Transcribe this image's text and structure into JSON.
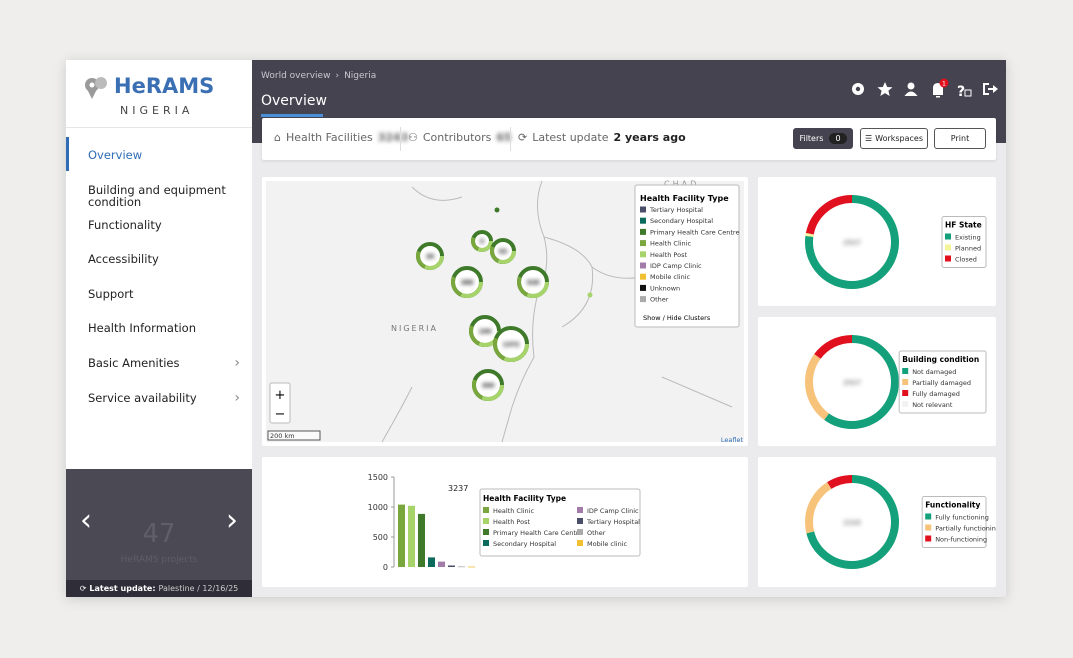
{
  "sidebar": {
    "brand": "HeRAMS",
    "country": "NIGERIA",
    "menu": [
      "Overview",
      "Building and equipment condition",
      "Functionality",
      "Accessibility",
      "Support",
      "Health Information",
      "Basic Amenities",
      "Service availability"
    ],
    "projects_count": "47",
    "projects_label": "HeRAMS projects",
    "latest_update_label": "Latest update:",
    "latest_update_value": "Palestine / 12/16/25"
  },
  "header": {
    "breadcrumb": [
      "World overview",
      "Nigeria"
    ],
    "title": "Overview",
    "notifications": "1"
  },
  "stats": {
    "facilities_label": "Health Facilities",
    "facilities_value": "3243",
    "contributors_label": "Contributors",
    "contributors_value": "65",
    "update_label": "Latest update",
    "update_value": "2 years ago",
    "filters": "Filters",
    "filters_count": "0",
    "workspaces": "Workspaces",
    "print": "Print"
  },
  "map": {
    "country_label": "NIGERIA",
    "neighbor_label": "CHAD",
    "scale": "200 km",
    "attribution": "Leaflet",
    "zoom_in": "+",
    "zoom_out": "−",
    "clusters": [
      "30",
      "5",
      "93",
      "388",
      "528",
      "199",
      "1372",
      "300"
    ],
    "legend": {
      "title": "Health Facility Type",
      "items": [
        {
          "name": "Tertiary Hospital",
          "color": "#4a4e69"
        },
        {
          "name": "Secondary Hospital",
          "color": "#0d6b5e"
        },
        {
          "name": "Primary Health Care Centre",
          "color": "#3f7a2a"
        },
        {
          "name": "Health Clinic",
          "color": "#7aa63e"
        },
        {
          "name": "Health Post",
          "color": "#a6d46a"
        },
        {
          "name": "IDP Camp Clinic",
          "color": "#a27ba8"
        },
        {
          "name": "Mobile clinic",
          "color": "#f0c030"
        },
        {
          "name": "Unknown",
          "color": "#111111"
        },
        {
          "name": "Other",
          "color": "#aaaaaa"
        }
      ],
      "toggle": "Show / Hide Clusters"
    }
  },
  "chart_data": [
    {
      "type": "bar",
      "legend_title": "Health Facility Type",
      "annotation": "3237",
      "categories": [
        "Health Clinic",
        "Health Post",
        "Primary Health Care Centre",
        "Secondary Hospital",
        "IDP Camp Clinic",
        "Tertiary Hospital",
        "Other",
        "Mobile clinic"
      ],
      "values": [
        1040,
        1020,
        885,
        160,
        90,
        25,
        10,
        7
      ],
      "colors": [
        "#7aa63e",
        "#a6d46a",
        "#3f7a2a",
        "#0d6b5e",
        "#a27ba8",
        "#4a4e69",
        "#aaaaaa",
        "#f0c030"
      ],
      "ylim": [
        0,
        1500
      ],
      "yticks": [
        0,
        500,
        1000,
        1500
      ]
    },
    {
      "type": "donut",
      "legend_title": "HF State",
      "total": "2507",
      "categories": [
        "Existing",
        "Planned",
        "Closed"
      ],
      "values": [
        1930,
        25,
        552
      ],
      "colors": [
        "#13a07a",
        "#f4f49a",
        "#e0101e"
      ]
    },
    {
      "type": "donut",
      "legend_title": "Building condition",
      "total": "2507",
      "categories": [
        "Not damaged",
        "Partially damaged",
        "Fully damaged",
        "Not relevant"
      ],
      "values": [
        1504,
        627,
        376,
        0
      ],
      "colors": [
        "#13a07a",
        "#f7c37a",
        "#e0101e",
        "#f2f2f2"
      ]
    },
    {
      "type": "donut",
      "legend_title": "Functionality",
      "total": "2330",
      "categories": [
        "Fully functioning",
        "Partially functioning",
        "Non-functioning"
      ],
      "values": [
        1654,
        466,
        210
      ],
      "colors": [
        "#13a07a",
        "#f7c37a",
        "#e0101e"
      ]
    }
  ]
}
